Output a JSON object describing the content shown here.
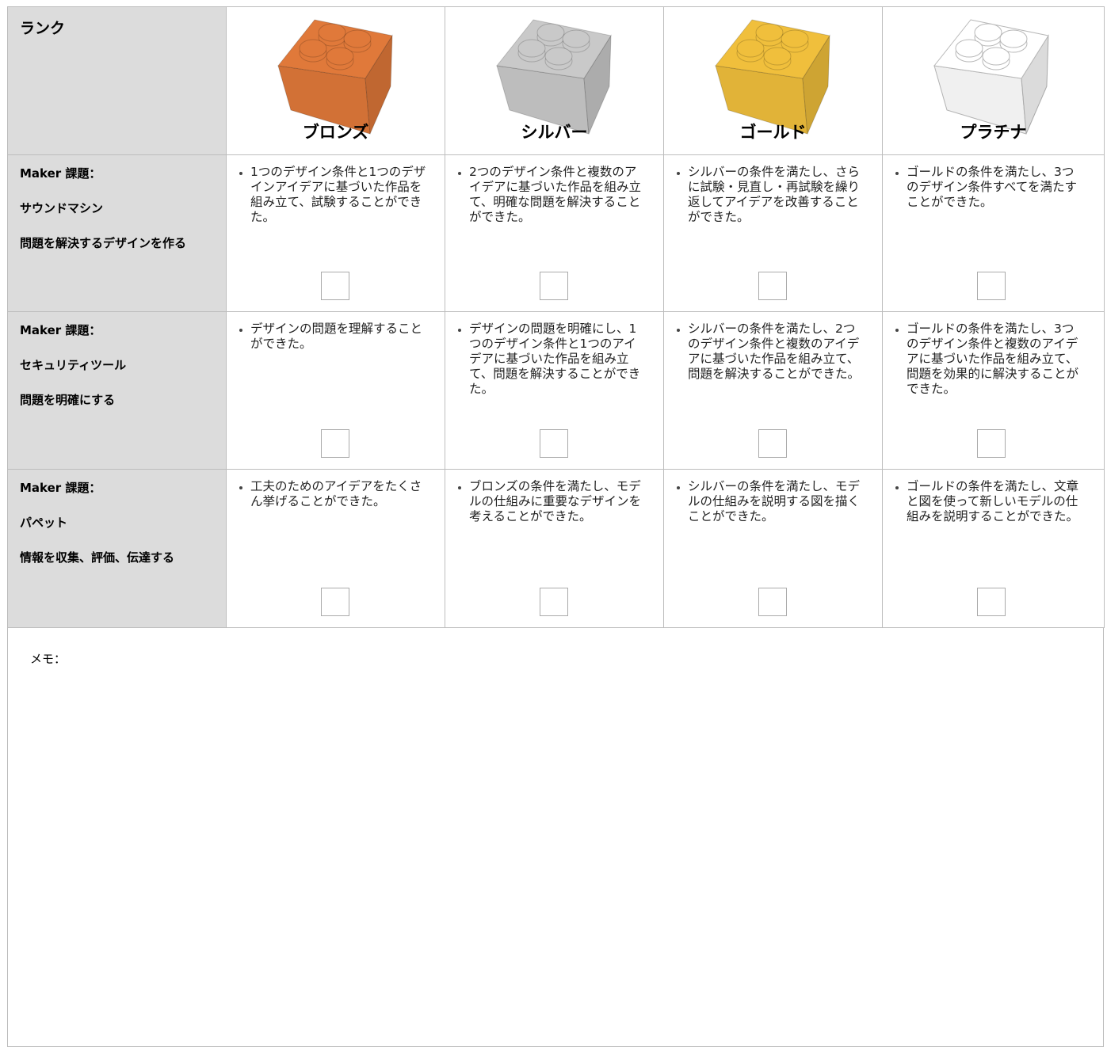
{
  "header": {
    "rank_label": "ランク",
    "ranks": [
      {
        "name": "ブロンズ",
        "color": "#e0793a"
      },
      {
        "name": "シルバー",
        "color": "#c9c9c9"
      },
      {
        "name": "ゴールド",
        "color": "#f0bf3c"
      },
      {
        "name": "プラチナ",
        "color": "#ffffff"
      }
    ]
  },
  "rows": [
    {
      "title": [
        "Maker 課題：",
        "サウンドマシン",
        "問題を解決するデザインを作る"
      ],
      "cells": [
        "1つのデザイン条件と1つのデザインアイデアに基づいた作品を組み立て、試験することができた。",
        "2つのデザイン条件と複数のアイデアに基づいた作品を組み立て、明確な問題を解決することができた。",
        "シルバーの条件を満たし、さらに試験・見直し・再試験を繰り返してアイデアを改善することができた。",
        "ゴールドの条件を満たし、3つのデザイン条件すべてを満たすことができた。"
      ]
    },
    {
      "title": [
        "Maker 課題：",
        "セキュリティツール",
        "問題を明確にする"
      ],
      "cells": [
        "デザインの問題を理解することができた。",
        "デザインの問題を明確にし、1つのデザイン条件と1つのアイデアに基づいた作品を組み立て、問題を解決することができた。",
        "シルバーの条件を満たし、2つのデザイン条件と複数のアイデアに基づいた作品を組み立て、問題を解決することができた。",
        "ゴールドの条件を満たし、3つのデザイン条件と複数のアイデアに基づいた作品を組み立て、問題を効果的に解決することができた。"
      ]
    },
    {
      "title": [
        "Maker 課題：",
        "パペット",
        "情報を収集、評価、伝達する"
      ],
      "cells": [
        "工夫のためのアイデアをたくさん挙げることができた。",
        "ブロンズの条件を満たし、モデルの仕組みに重要なデザインを考えることができた。",
        "シルバーの条件を満たし、モデルの仕組みを説明する図を描くことができた。",
        "ゴールドの条件を満たし、文章と図を使って新しいモデルの仕組みを説明することができた。"
      ]
    }
  ],
  "memo": "メモ："
}
